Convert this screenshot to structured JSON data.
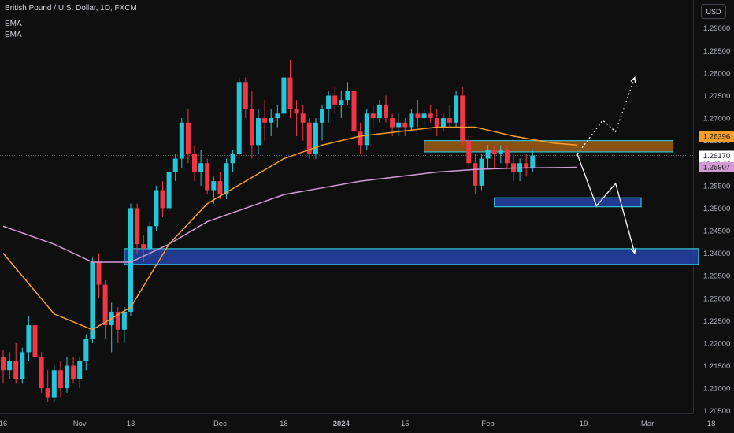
{
  "header": {
    "title": "British Pound / U.S. Dollar, 1D, FXCM",
    "indicators": [
      "EMA",
      "EMA"
    ],
    "currency_button": "USD"
  },
  "colors": {
    "background": "#0f0f0f",
    "up_candle": "#26c6da",
    "down_candle": "#f23645",
    "ema_fast": "#f59e2c",
    "ema_slow": "#d39bd6",
    "resistance_zone": "#a05e13",
    "support_zone": "#233e9c",
    "zone_border": "#2fc3d6",
    "projection": "#ffffff",
    "axis_text": "#b2b5be"
  },
  "chart_data": {
    "type": "candlestick",
    "symbol": "GBPUSD",
    "timeframe": "1D",
    "y_axis": {
      "ticks": [
        "1.29000",
        "1.28500",
        "1.28000",
        "1.27500",
        "1.27000",
        "1.26500",
        "1.26000",
        "1.25500",
        "1.25000",
        "1.24500",
        "1.24000",
        "1.23500",
        "1.23000",
        "1.22500",
        "1.22000",
        "1.21500",
        "1.21000",
        "1.20500"
      ],
      "range": [
        1.2045,
        1.2945
      ]
    },
    "x_axis": {
      "labels": [
        {
          "label": "16",
          "index": 0
        },
        {
          "label": "Nov",
          "index": 12
        },
        {
          "label": "13",
          "index": 20
        },
        {
          "label": "Dec",
          "index": 34
        },
        {
          "label": "18",
          "index": 44
        },
        {
          "label": "2024",
          "index": 53
        },
        {
          "label": "15",
          "index": 63
        },
        {
          "label": "Feb",
          "index": 76
        },
        {
          "label": "19",
          "index": 91
        },
        {
          "label": "Mar",
          "index": 101
        },
        {
          "label": "18",
          "index": 111
        }
      ]
    },
    "price_labels": [
      {
        "value": "1.26396",
        "role": "ema_fast"
      },
      {
        "value": "1.26170",
        "role": "last_price",
        "sub": "12:42:08"
      },
      {
        "value": "1.25907",
        "role": "ema_slow"
      }
    ],
    "ohlc": [
      [
        1.217,
        1.2185,
        1.211,
        1.214
      ],
      [
        1.214,
        1.218,
        1.212,
        1.216
      ],
      [
        1.216,
        1.22,
        1.211,
        1.212
      ],
      [
        1.212,
        1.219,
        1.211,
        1.218
      ],
      [
        1.218,
        1.226,
        1.216,
        1.224
      ],
      [
        1.224,
        1.227,
        1.215,
        1.217
      ],
      [
        1.217,
        1.218,
        1.209,
        1.21
      ],
      [
        1.21,
        1.214,
        1.207,
        1.208
      ],
      [
        1.208,
        1.215,
        1.207,
        1.214
      ],
      [
        1.214,
        1.216,
        1.208,
        1.21
      ],
      [
        1.21,
        1.217,
        1.209,
        1.215
      ],
      [
        1.215,
        1.217,
        1.211,
        1.212
      ],
      [
        1.212,
        1.217,
        1.21,
        1.216
      ],
      [
        1.216,
        1.222,
        1.214,
        1.221
      ],
      [
        1.221,
        1.239,
        1.22,
        1.238
      ],
      [
        1.238,
        1.24,
        1.23,
        1.233
      ],
      [
        1.233,
        1.234,
        1.221,
        1.224
      ],
      [
        1.224,
        1.229,
        1.218,
        1.227
      ],
      [
        1.227,
        1.228,
        1.22,
        1.223
      ],
      [
        1.223,
        1.228,
        1.22,
        1.227
      ],
      [
        1.227,
        1.251,
        1.226,
        1.25
      ],
      [
        1.25,
        1.251,
        1.24,
        1.242
      ],
      [
        1.242,
        1.244,
        1.238,
        1.241
      ],
      [
        1.241,
        1.247,
        1.239,
        1.246
      ],
      [
        1.246,
        1.255,
        1.245,
        1.254
      ],
      [
        1.254,
        1.256,
        1.248,
        1.25
      ],
      [
        1.25,
        1.259,
        1.249,
        1.258
      ],
      [
        1.258,
        1.262,
        1.256,
        1.261
      ],
      [
        1.261,
        1.27,
        1.259,
        1.269
      ],
      [
        1.269,
        1.272,
        1.26,
        1.262
      ],
      [
        1.262,
        1.264,
        1.256,
        1.258
      ],
      [
        1.258,
        1.263,
        1.255,
        1.26
      ],
      [
        1.26,
        1.261,
        1.253,
        1.254
      ],
      [
        1.254,
        1.257,
        1.251,
        1.256
      ],
      [
        1.256,
        1.258,
        1.252,
        1.253
      ],
      [
        1.253,
        1.261,
        1.252,
        1.26
      ],
      [
        1.26,
        1.263,
        1.258,
        1.262
      ],
      [
        1.262,
        1.279,
        1.261,
        1.278
      ],
      [
        1.278,
        1.279,
        1.27,
        1.272
      ],
      [
        1.272,
        1.276,
        1.261,
        1.264
      ],
      [
        1.264,
        1.272,
        1.262,
        1.27
      ],
      [
        1.27,
        1.274,
        1.265,
        1.269
      ],
      [
        1.269,
        1.272,
        1.266,
        1.27
      ],
      [
        1.27,
        1.273,
        1.268,
        1.271
      ],
      [
        1.271,
        1.28,
        1.27,
        1.279
      ],
      [
        1.279,
        1.283,
        1.27,
        1.272
      ],
      [
        1.272,
        1.274,
        1.266,
        1.271
      ],
      [
        1.271,
        1.273,
        1.265,
        1.269
      ],
      [
        1.269,
        1.27,
        1.261,
        1.262
      ],
      [
        1.262,
        1.27,
        1.261,
        1.269
      ],
      [
        1.269,
        1.273,
        1.265,
        1.272
      ],
      [
        1.272,
        1.276,
        1.269,
        1.275
      ],
      [
        1.275,
        1.277,
        1.271,
        1.273
      ],
      [
        1.273,
        1.276,
        1.27,
        1.274
      ],
      [
        1.274,
        1.278,
        1.273,
        1.276
      ],
      [
        1.276,
        1.277,
        1.265,
        1.267
      ],
      [
        1.267,
        1.269,
        1.262,
        1.264
      ],
      [
        1.264,
        1.272,
        1.263,
        1.271
      ],
      [
        1.271,
        1.273,
        1.268,
        1.27
      ],
      [
        1.27,
        1.274,
        1.269,
        1.273
      ],
      [
        1.273,
        1.275,
        1.269,
        1.27
      ],
      [
        1.27,
        1.271,
        1.266,
        1.268
      ],
      [
        1.268,
        1.271,
        1.266,
        1.269
      ],
      [
        1.269,
        1.27,
        1.266,
        1.268
      ],
      [
        1.268,
        1.272,
        1.267,
        1.271
      ],
      [
        1.271,
        1.274,
        1.268,
        1.27
      ],
      [
        1.27,
        1.272,
        1.268,
        1.271
      ],
      [
        1.271,
        1.273,
        1.269,
        1.27
      ],
      [
        1.27,
        1.272,
        1.266,
        1.268
      ],
      [
        1.268,
        1.271,
        1.267,
        1.27
      ],
      [
        1.27,
        1.273,
        1.268,
        1.269
      ],
      [
        1.269,
        1.276,
        1.268,
        1.275
      ],
      [
        1.275,
        1.277,
        1.264,
        1.265
      ],
      [
        1.265,
        1.266,
        1.259,
        1.26
      ],
      [
        1.26,
        1.262,
        1.253,
        1.255
      ],
      [
        1.255,
        1.262,
        1.254,
        1.261
      ],
      [
        1.261,
        1.264,
        1.259,
        1.263
      ],
      [
        1.263,
        1.264,
        1.259,
        1.262
      ],
      [
        1.262,
        1.264,
        1.26,
        1.263
      ],
      [
        1.263,
        1.264,
        1.259,
        1.26
      ],
      [
        1.26,
        1.262,
        1.256,
        1.258
      ],
      [
        1.258,
        1.261,
        1.256,
        1.26
      ],
      [
        1.26,
        1.262,
        1.257,
        1.259
      ],
      [
        1.259,
        1.263,
        1.258,
        1.2617
      ]
    ],
    "ema_fast": [
      [
        0,
        1.24
      ],
      [
        8,
        1.2265
      ],
      [
        14,
        1.223
      ],
      [
        20,
        1.228
      ],
      [
        26,
        1.242
      ],
      [
        32,
        1.251
      ],
      [
        38,
        1.256
      ],
      [
        44,
        1.261
      ],
      [
        50,
        1.264
      ],
      [
        56,
        1.266
      ],
      [
        62,
        1.267
      ],
      [
        68,
        1.268
      ],
      [
        74,
        1.268
      ],
      [
        80,
        1.266
      ],
      [
        86,
        1.2645
      ],
      [
        90,
        1.264
      ]
    ],
    "ema_slow": [
      [
        0,
        1.246
      ],
      [
        8,
        1.242
      ],
      [
        14,
        1.238
      ],
      [
        20,
        1.238
      ],
      [
        26,
        1.242
      ],
      [
        32,
        1.247
      ],
      [
        38,
        1.25
      ],
      [
        44,
        1.253
      ],
      [
        50,
        1.2545
      ],
      [
        56,
        1.256
      ],
      [
        62,
        1.257
      ],
      [
        68,
        1.258
      ],
      [
        74,
        1.2586
      ],
      [
        80,
        1.2589
      ],
      [
        86,
        1.259
      ],
      [
        90,
        1.25907
      ]
    ],
    "zones": [
      {
        "kind": "resistance",
        "from_index": 66,
        "to_index": 105,
        "low": 1.2625,
        "high": 1.265
      },
      {
        "kind": "support",
        "from_index": 77,
        "to_index": 100,
        "low": 1.2503,
        "high": 1.2523
      },
      {
        "kind": "support",
        "from_index": 19,
        "to_index": 109,
        "low": 1.2375,
        "high": 1.241
      }
    ],
    "projections": [
      {
        "style": "dotted",
        "points": [
          [
            90,
            1.262
          ],
          [
            94,
            1.2695
          ],
          [
            96,
            1.267
          ],
          [
            99,
            1.279
          ]
        ]
      },
      {
        "style": "solid",
        "points": [
          [
            90,
            1.262
          ],
          [
            93,
            1.2505
          ],
          [
            96,
            1.2555
          ],
          [
            99,
            1.24
          ]
        ]
      }
    ]
  }
}
